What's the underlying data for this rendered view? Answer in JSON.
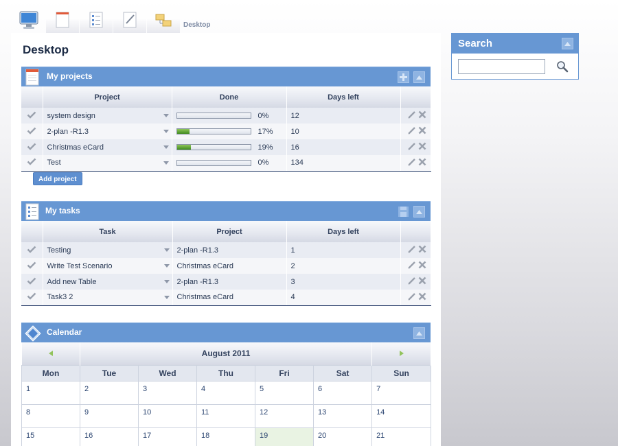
{
  "nav": {
    "tabs": [
      {
        "icon": "desktop-icon",
        "active": true
      },
      {
        "icon": "document-icon",
        "active": false
      },
      {
        "icon": "task-list-icon",
        "active": false
      },
      {
        "icon": "notes-icon",
        "active": false
      },
      {
        "icon": "folder-tree-icon",
        "active": false
      }
    ],
    "breadcrumb": "Desktop"
  },
  "page": {
    "title": "Desktop"
  },
  "projects": {
    "title": "My projects",
    "columns": [
      "Project",
      "Done",
      "Days left"
    ],
    "rows": [
      {
        "name": "system design",
        "done": 0,
        "done_label": "0%",
        "days_left": "12"
      },
      {
        "name": "2-plan -R1.3",
        "done": 17,
        "done_label": "17%",
        "days_left": "10"
      },
      {
        "name": "Christmas eCard",
        "done": 19,
        "done_label": "19%",
        "days_left": "16"
      },
      {
        "name": "Test",
        "done": 0,
        "done_label": "0%",
        "days_left": "134"
      }
    ],
    "add_label": "Add project"
  },
  "tasks": {
    "title": "My tasks",
    "columns": [
      "Task",
      "Project",
      "Days left"
    ],
    "rows": [
      {
        "name": "Testing",
        "project": "2-plan -R1.3",
        "days_left": "1"
      },
      {
        "name": "Write Test Scenario",
        "project": "Christmas eCard",
        "days_left": "2"
      },
      {
        "name": "Add new Table",
        "project": "2-plan -R1.3",
        "days_left": "3"
      },
      {
        "name": "Task3 2",
        "project": "Christmas eCard",
        "days_left": "4"
      }
    ]
  },
  "calendar": {
    "title": "Calendar",
    "month": "August 2011",
    "weekdays": [
      "Mon",
      "Tue",
      "Wed",
      "Thu",
      "Fri",
      "Sat",
      "Sun"
    ],
    "weeks": [
      [
        "1",
        "2",
        "3",
        "4",
        "5",
        "6",
        "7"
      ],
      [
        "8",
        "9",
        "10",
        "11",
        "12",
        "13",
        "14"
      ],
      [
        "15",
        "16",
        "17",
        "18",
        "19",
        "20",
        "21"
      ]
    ],
    "today": "19"
  },
  "search": {
    "title": "Search",
    "value": "",
    "placeholder": ""
  },
  "colors": {
    "header_blue": "#6797d3",
    "progress_green": "#4a9a25",
    "today_bg": "#e9f3e3"
  }
}
